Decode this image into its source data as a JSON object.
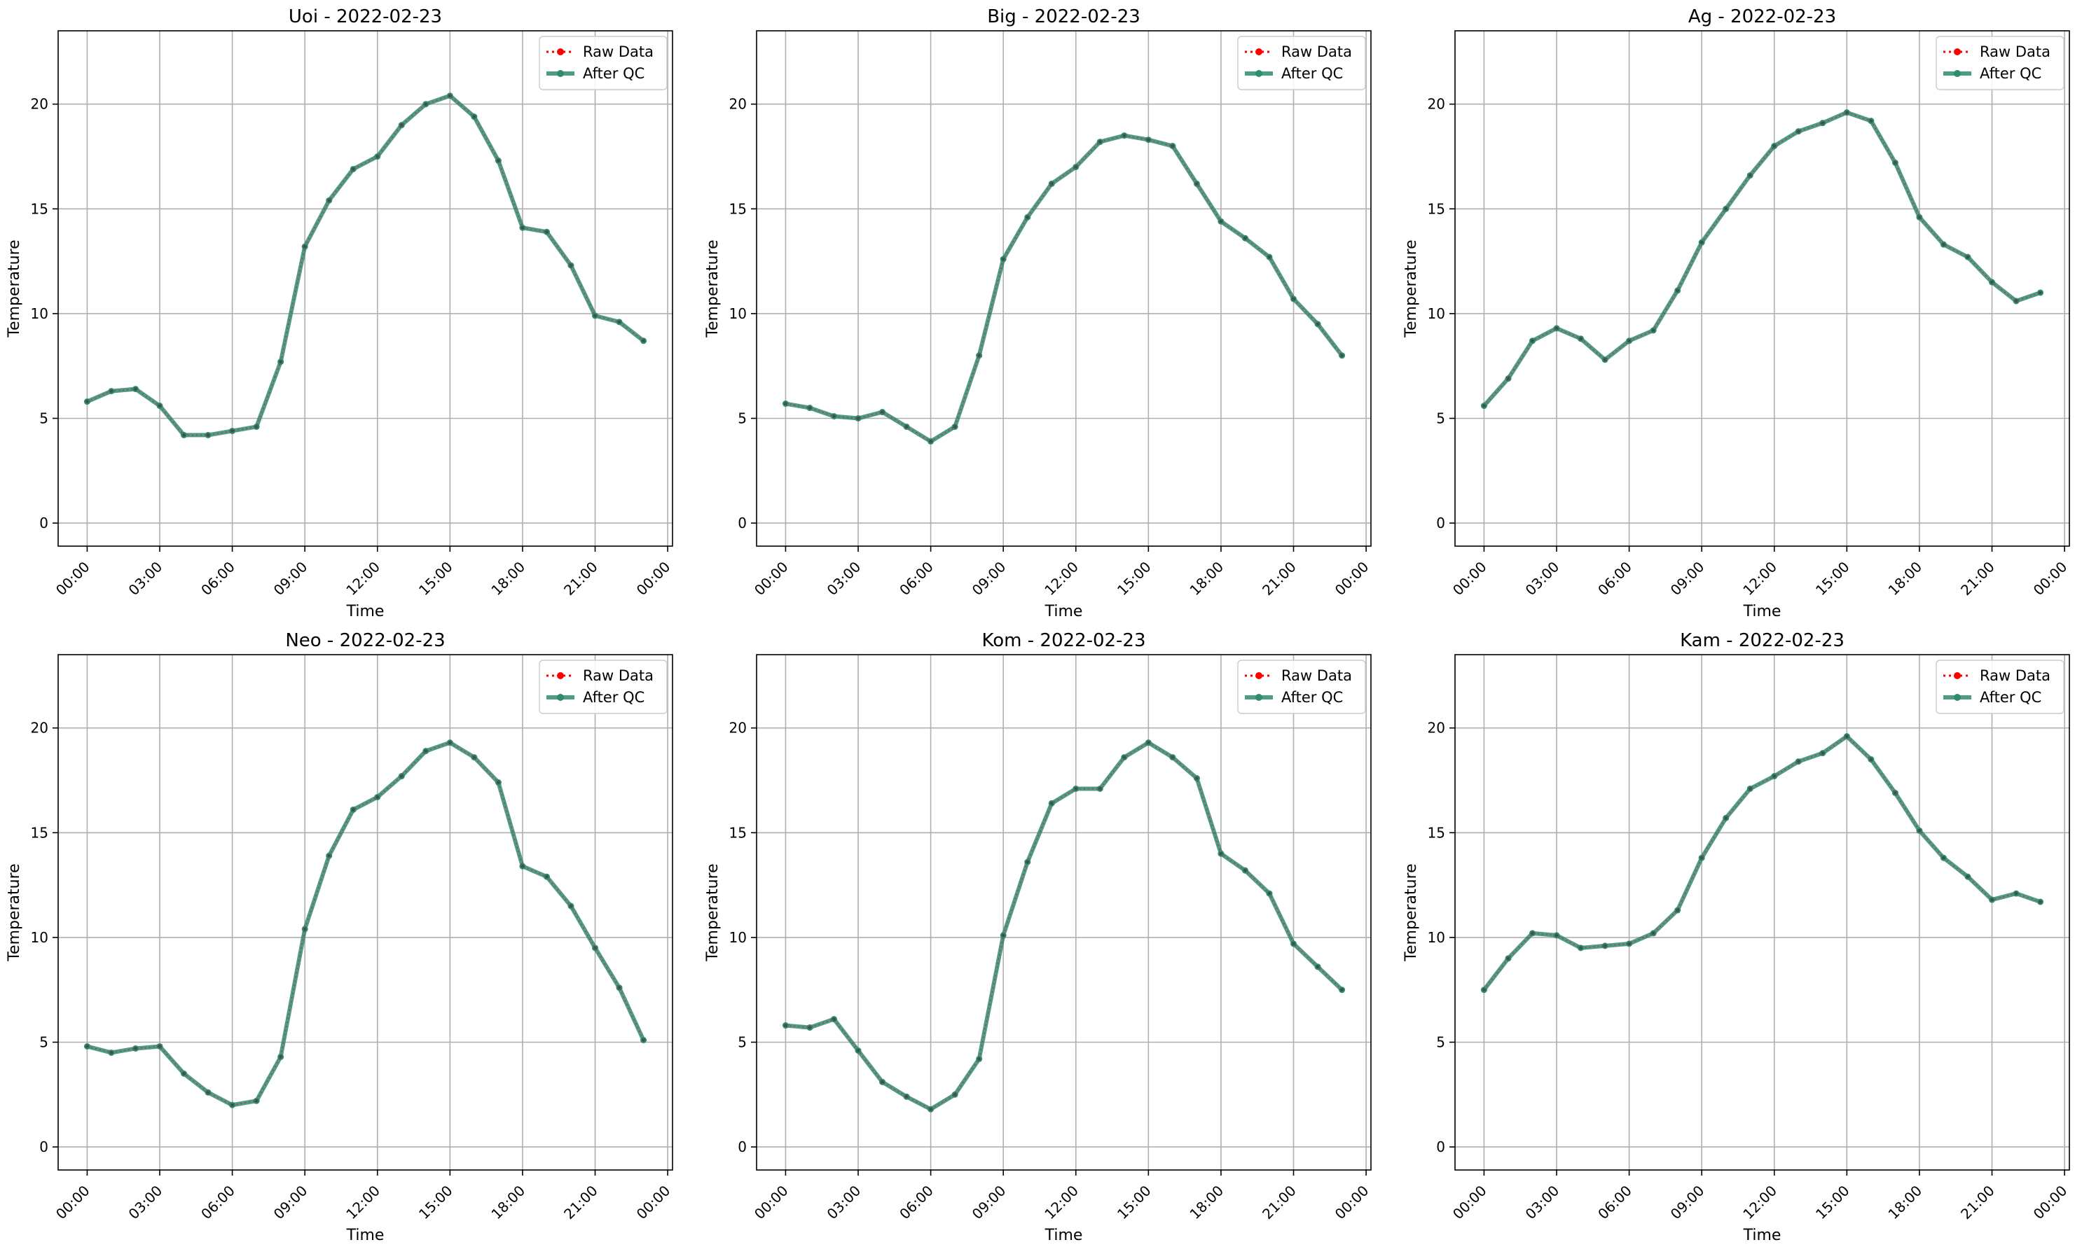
{
  "chart_data": [
    {
      "type": "line",
      "title": "Uoi - 2022-02-23",
      "xlabel": "Time",
      "ylabel": "Temperature",
      "x_tick_labels": [
        "00:00",
        "03:00",
        "06:00",
        "09:00",
        "12:00",
        "15:00",
        "18:00",
        "21:00",
        "00:00"
      ],
      "y_ticks": [
        0,
        5,
        10,
        15,
        20
      ],
      "xlim_hours": [
        -1.2,
        24.2
      ],
      "ylim": [
        -1.1,
        23.5
      ],
      "grid": true,
      "legend_position": "top-right",
      "x_hours": [
        0,
        1,
        2,
        3,
        4,
        5,
        6,
        7,
        8,
        9,
        10,
        11,
        12,
        13,
        14,
        15,
        16,
        17,
        18,
        19,
        20,
        21,
        22,
        23
      ],
      "series": [
        {
          "name": "Raw Data",
          "color": "#ff0000",
          "style": "dotted",
          "values": [
            5.8,
            6.3,
            6.4,
            5.6,
            4.2,
            4.2,
            4.4,
            4.6,
            7.7,
            13.2,
            15.4,
            16.9,
            17.5,
            19.0,
            20.0,
            20.4,
            19.4,
            17.3,
            14.1,
            13.9,
            12.3,
            9.9,
            9.6,
            8.7
          ]
        },
        {
          "name": "After QC",
          "color": "#2e8b6e",
          "style": "solid",
          "values": [
            5.8,
            6.3,
            6.4,
            5.6,
            4.2,
            4.2,
            4.4,
            4.6,
            7.7,
            13.2,
            15.4,
            16.9,
            17.5,
            19.0,
            20.0,
            20.4,
            19.4,
            17.3,
            14.1,
            13.9,
            12.3,
            9.9,
            9.6,
            8.7
          ]
        }
      ]
    },
    {
      "type": "line",
      "title": "Big - 2022-02-23",
      "xlabel": "Time",
      "ylabel": "Temperature",
      "x_tick_labels": [
        "00:00",
        "03:00",
        "06:00",
        "09:00",
        "12:00",
        "15:00",
        "18:00",
        "21:00",
        "00:00"
      ],
      "y_ticks": [
        0,
        5,
        10,
        15,
        20
      ],
      "xlim_hours": [
        -1.2,
        24.2
      ],
      "ylim": [
        -1.1,
        23.5
      ],
      "grid": true,
      "legend_position": "top-right",
      "x_hours": [
        0,
        1,
        2,
        3,
        4,
        5,
        6,
        7,
        8,
        9,
        10,
        11,
        12,
        13,
        14,
        15,
        16,
        17,
        18,
        19,
        20,
        21,
        22,
        23
      ],
      "series": [
        {
          "name": "Raw Data",
          "color": "#ff0000",
          "style": "dotted",
          "values": [
            5.7,
            5.5,
            5.1,
            5.0,
            5.3,
            4.6,
            3.9,
            4.6,
            8.0,
            12.6,
            14.6,
            16.2,
            17.0,
            18.2,
            18.5,
            18.3,
            18.0,
            16.2,
            14.4,
            13.6,
            12.7,
            10.7,
            9.5,
            8.0
          ]
        },
        {
          "name": "After QC",
          "color": "#2e8b6e",
          "style": "solid",
          "values": [
            5.7,
            5.5,
            5.1,
            5.0,
            5.3,
            4.6,
            3.9,
            4.6,
            8.0,
            12.6,
            14.6,
            16.2,
            17.0,
            18.2,
            18.5,
            18.3,
            18.0,
            16.2,
            14.4,
            13.6,
            12.7,
            10.7,
            9.5,
            8.0
          ]
        }
      ]
    },
    {
      "type": "line",
      "title": "Ag - 2022-02-23",
      "xlabel": "Time",
      "ylabel": "Temperature",
      "x_tick_labels": [
        "00:00",
        "03:00",
        "06:00",
        "09:00",
        "12:00",
        "15:00",
        "18:00",
        "21:00",
        "00:00"
      ],
      "y_ticks": [
        0,
        5,
        10,
        15,
        20
      ],
      "xlim_hours": [
        -1.2,
        24.2
      ],
      "ylim": [
        -1.1,
        23.5
      ],
      "grid": true,
      "legend_position": "top-right",
      "x_hours": [
        0,
        1,
        2,
        3,
        4,
        5,
        6,
        7,
        8,
        9,
        10,
        11,
        12,
        13,
        14,
        15,
        16,
        17,
        18,
        19,
        20,
        21,
        22,
        23
      ],
      "series": [
        {
          "name": "Raw Data",
          "color": "#ff0000",
          "style": "dotted",
          "values": [
            5.6,
            6.9,
            8.7,
            9.3,
            8.8,
            7.8,
            8.7,
            9.2,
            11.1,
            13.4,
            15.0,
            16.6,
            18.0,
            18.7,
            19.1,
            19.6,
            19.2,
            17.2,
            14.6,
            13.3,
            12.7,
            11.5,
            10.6,
            11.0
          ]
        },
        {
          "name": "After QC",
          "color": "#2e8b6e",
          "style": "solid",
          "values": [
            5.6,
            6.9,
            8.7,
            9.3,
            8.8,
            7.8,
            8.7,
            9.2,
            11.1,
            13.4,
            15.0,
            16.6,
            18.0,
            18.7,
            19.1,
            19.6,
            19.2,
            17.2,
            14.6,
            13.3,
            12.7,
            11.5,
            10.6,
            11.0
          ]
        }
      ]
    },
    {
      "type": "line",
      "title": "Neo - 2022-02-23",
      "xlabel": "Time",
      "ylabel": "Temperature",
      "x_tick_labels": [
        "00:00",
        "03:00",
        "06:00",
        "09:00",
        "12:00",
        "15:00",
        "18:00",
        "21:00",
        "00:00"
      ],
      "y_ticks": [
        0,
        5,
        10,
        15,
        20
      ],
      "xlim_hours": [
        -1.2,
        24.2
      ],
      "ylim": [
        -1.1,
        23.5
      ],
      "grid": true,
      "legend_position": "top-right",
      "x_hours": [
        0,
        1,
        2,
        3,
        4,
        5,
        6,
        7,
        8,
        9,
        10,
        11,
        12,
        13,
        14,
        15,
        16,
        17,
        18,
        19,
        20,
        21,
        22,
        23
      ],
      "series": [
        {
          "name": "Raw Data",
          "color": "#ff0000",
          "style": "dotted",
          "values": [
            4.8,
            4.5,
            4.7,
            4.8,
            3.5,
            2.6,
            2.0,
            2.2,
            4.3,
            10.4,
            13.9,
            16.1,
            16.7,
            17.7,
            18.9,
            19.3,
            18.6,
            17.4,
            13.4,
            12.9,
            11.5,
            9.5,
            7.6,
            5.1
          ]
        },
        {
          "name": "After QC",
          "color": "#2e8b6e",
          "style": "solid",
          "values": [
            4.8,
            4.5,
            4.7,
            4.8,
            3.5,
            2.6,
            2.0,
            2.2,
            4.3,
            10.4,
            13.9,
            16.1,
            16.7,
            17.7,
            18.9,
            19.3,
            18.6,
            17.4,
            13.4,
            12.9,
            11.5,
            9.5,
            7.6,
            5.1
          ]
        }
      ]
    },
    {
      "type": "line",
      "title": "Kom - 2022-02-23",
      "xlabel": "Time",
      "ylabel": "Temperature",
      "x_tick_labels": [
        "00:00",
        "03:00",
        "06:00",
        "09:00",
        "12:00",
        "15:00",
        "18:00",
        "21:00",
        "00:00"
      ],
      "y_ticks": [
        0,
        5,
        10,
        15,
        20
      ],
      "xlim_hours": [
        -1.2,
        24.2
      ],
      "ylim": [
        -1.1,
        23.5
      ],
      "grid": true,
      "legend_position": "top-right",
      "x_hours": [
        0,
        1,
        2,
        3,
        4,
        5,
        6,
        7,
        8,
        9,
        10,
        11,
        12,
        13,
        14,
        15,
        16,
        17,
        18,
        19,
        20,
        21,
        22,
        23
      ],
      "series": [
        {
          "name": "Raw Data",
          "color": "#ff0000",
          "style": "dotted",
          "values": [
            5.8,
            5.7,
            6.1,
            4.6,
            3.1,
            2.4,
            1.8,
            2.5,
            4.2,
            10.1,
            13.6,
            16.4,
            17.1,
            17.1,
            18.6,
            19.3,
            18.6,
            17.6,
            14.0,
            13.2,
            12.1,
            9.7,
            8.6,
            7.5
          ]
        },
        {
          "name": "After QC",
          "color": "#2e8b6e",
          "style": "solid",
          "values": [
            5.8,
            5.7,
            6.1,
            4.6,
            3.1,
            2.4,
            1.8,
            2.5,
            4.2,
            10.1,
            13.6,
            16.4,
            17.1,
            17.1,
            18.6,
            19.3,
            18.6,
            17.6,
            14.0,
            13.2,
            12.1,
            9.7,
            8.6,
            7.5
          ]
        }
      ]
    },
    {
      "type": "line",
      "title": "Kam - 2022-02-23",
      "xlabel": "Time",
      "ylabel": "Temperature",
      "x_tick_labels": [
        "00:00",
        "03:00",
        "06:00",
        "09:00",
        "12:00",
        "15:00",
        "18:00",
        "21:00",
        "00:00"
      ],
      "y_ticks": [
        0,
        5,
        10,
        15,
        20
      ],
      "xlim_hours": [
        -1.2,
        24.2
      ],
      "ylim": [
        -1.1,
        23.5
      ],
      "grid": true,
      "legend_position": "top-right",
      "x_hours": [
        0,
        1,
        2,
        3,
        4,
        5,
        6,
        7,
        8,
        9,
        10,
        11,
        12,
        13,
        14,
        15,
        16,
        17,
        18,
        19,
        20,
        21,
        22,
        23
      ],
      "series": [
        {
          "name": "Raw Data",
          "color": "#ff0000",
          "style": "dotted",
          "values": [
            7.5,
            9.0,
            10.2,
            10.1,
            9.5,
            9.6,
            9.7,
            10.2,
            11.3,
            13.8,
            15.7,
            17.1,
            17.7,
            18.4,
            18.8,
            19.6,
            18.5,
            16.9,
            15.1,
            13.8,
            12.9,
            11.8,
            12.1,
            11.7
          ]
        },
        {
          "name": "After QC",
          "color": "#2e8b6e",
          "style": "solid",
          "values": [
            7.5,
            9.0,
            10.2,
            10.1,
            9.5,
            9.6,
            9.7,
            10.2,
            11.3,
            13.8,
            15.7,
            17.1,
            17.7,
            18.4,
            18.8,
            19.6,
            18.5,
            16.9,
            15.1,
            13.8,
            12.9,
            11.8,
            12.1,
            11.7
          ]
        }
      ]
    }
  ]
}
